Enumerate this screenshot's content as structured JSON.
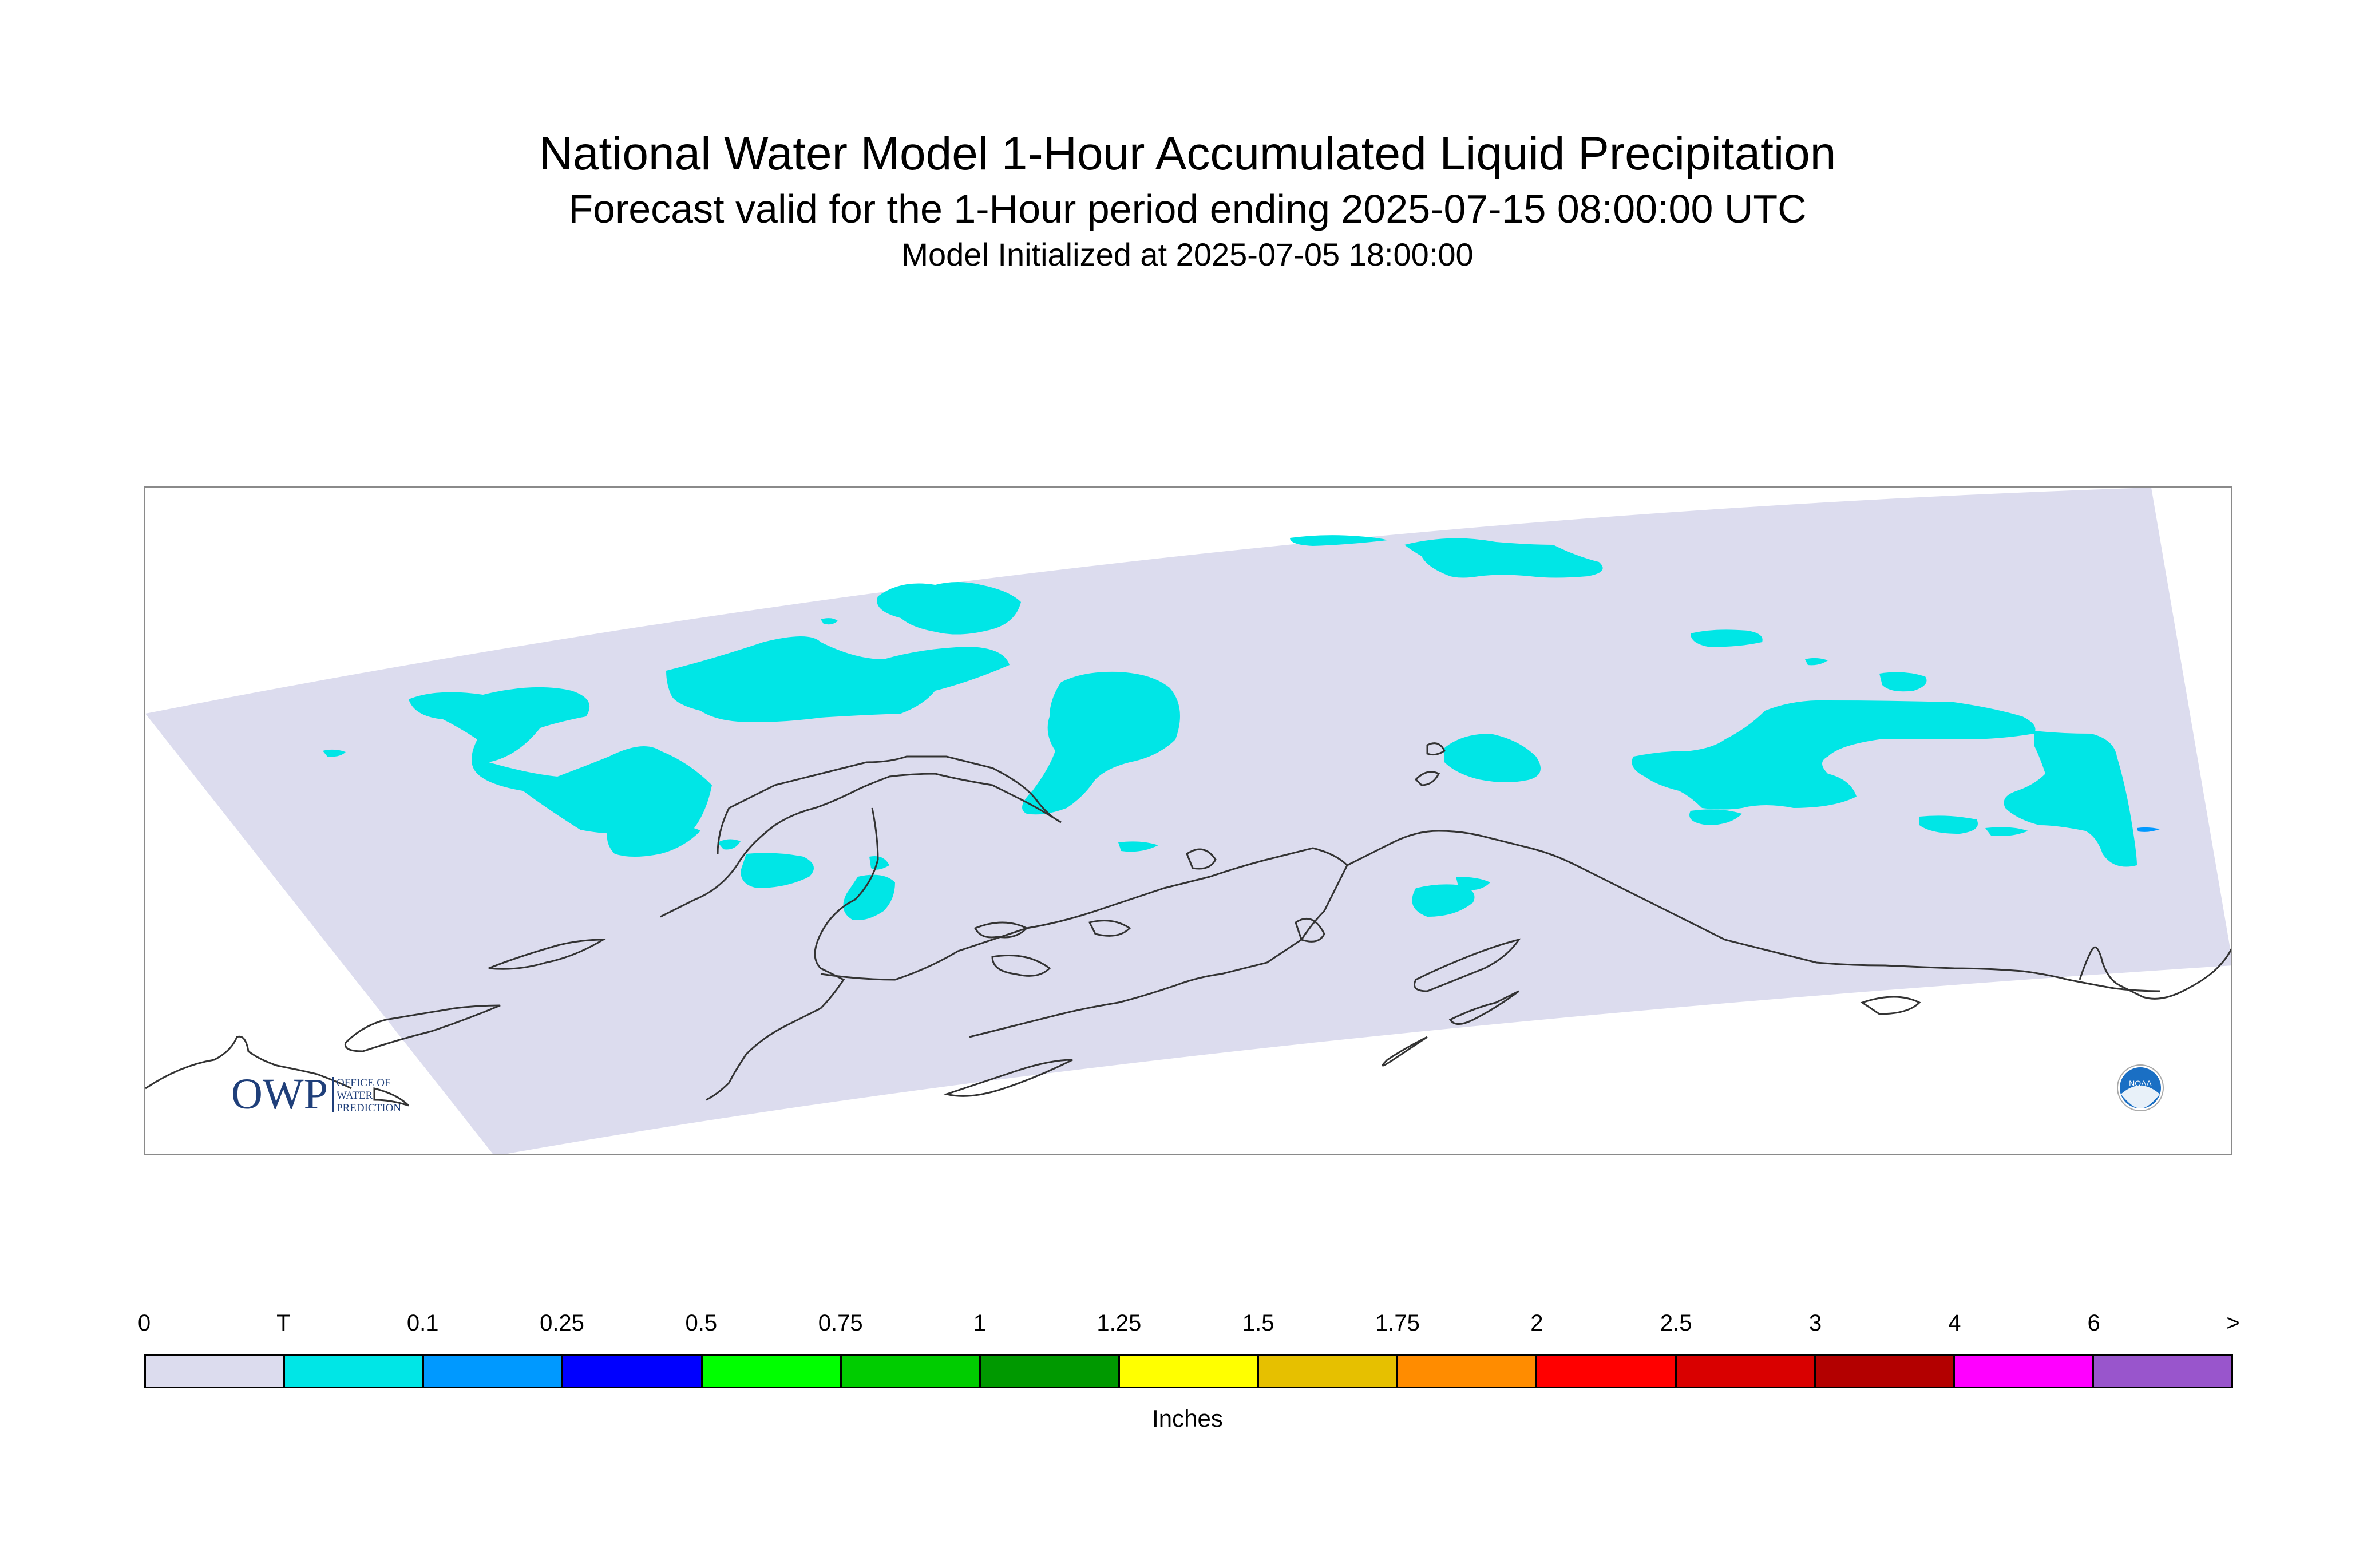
{
  "title": "National Water Model 1-Hour Accumulated Liquid Precipitation",
  "subtitle": "Forecast valid for the 1-Hour period ending 2025-07-15 08:00:00 UTC",
  "init_line": "Model Initialized at 2025-07-05 18:00:00",
  "logos": {
    "owp": {
      "mark": "OWP",
      "text_lines": [
        "OFFICE OF",
        "WATER",
        "PREDICTION"
      ],
      "color": "#1f3f7a"
    },
    "noaa": {
      "mark": "NOAA",
      "color": "#1a6fc4"
    }
  },
  "colors": {
    "domain": "#dcdcee",
    "trace": "#00e6e6",
    "coast": "#333333"
  },
  "legend": {
    "units": "Inches",
    "tick_labels": [
      "0",
      "T",
      "0.1",
      "0.25",
      "0.5",
      "0.75",
      "1",
      "1.25",
      "1.5",
      "1.75",
      "2",
      "2.5",
      "3",
      "4",
      "6",
      ">"
    ],
    "colors": [
      "#dcdcee",
      "#00e6e6",
      "#0099ff",
      "#0000ff",
      "#00ff00",
      "#00cc00",
      "#009900",
      "#ffff00",
      "#e6c000",
      "#ff8c00",
      "#ff0000",
      "#d90000",
      "#b30000",
      "#ff00ff",
      "#9955cc"
    ]
  }
}
